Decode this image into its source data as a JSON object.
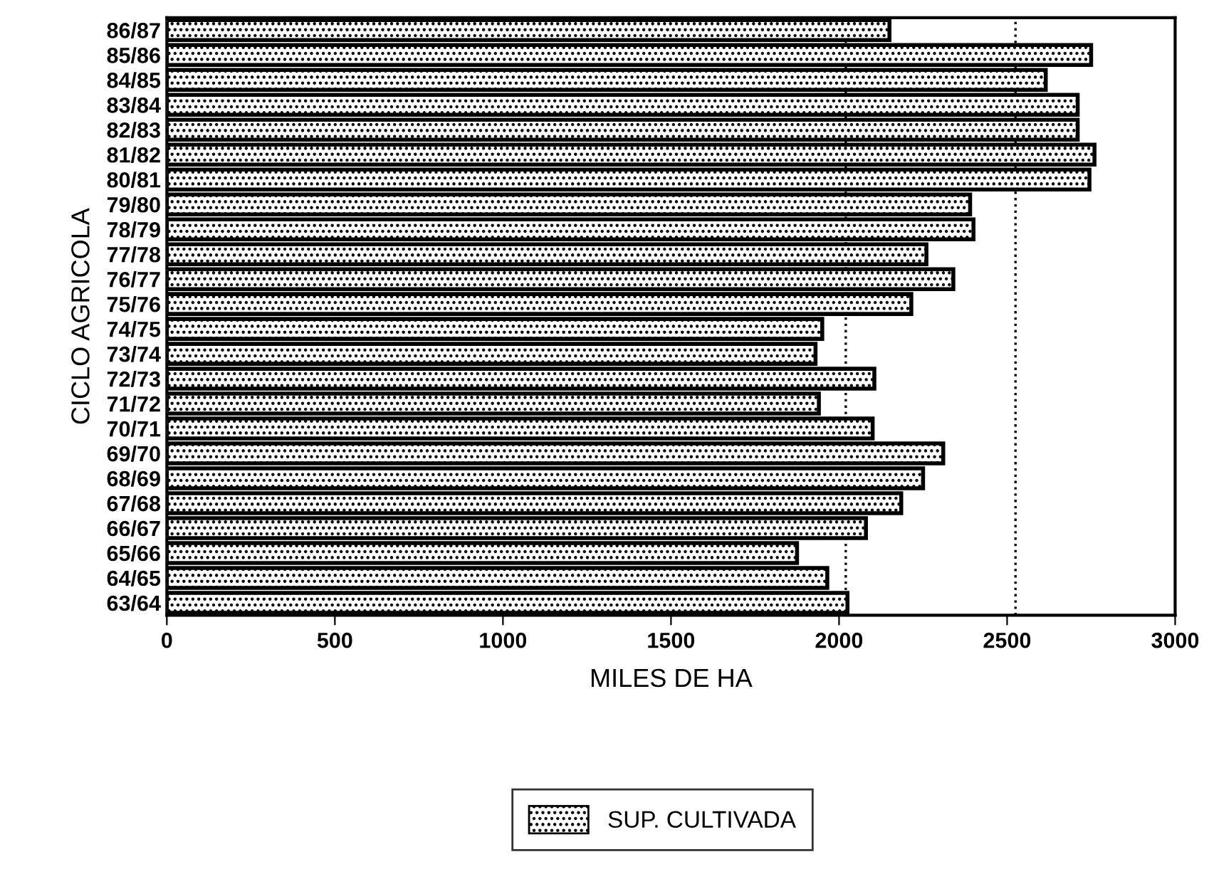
{
  "chart_data": {
    "type": "bar",
    "orientation": "horizontal",
    "xlabel": "MILES DE HA",
    "ylabel": "CICLO AGRICOLA",
    "categories": [
      "86/87",
      "85/86",
      "84/85",
      "83/84",
      "82/83",
      "81/82",
      "80/81",
      "79/80",
      "78/79",
      "77/78",
      "76/77",
      "75/76",
      "74/75",
      "73/74",
      "72/73",
      "71/72",
      "70/71",
      "69/70",
      "68/69",
      "67/68",
      "66/67",
      "65/66",
      "64/65",
      "63/64"
    ],
    "series": [
      {
        "name": "SUP. CULTIVADA",
        "color": "#000000",
        "values": [
          2150,
          2750,
          2615,
          2710,
          2710,
          2760,
          2745,
          2390,
          2400,
          2260,
          2340,
          2215,
          1950,
          1930,
          2105,
          1940,
          2100,
          2310,
          2250,
          2185,
          2080,
          1875,
          1965,
          2025
        ]
      }
    ],
    "xlim": [
      0,
      3000
    ],
    "xticks": [
      0,
      500,
      1000,
      1500,
      2000,
      2500,
      3000
    ],
    "ref_lines": [
      {
        "axis": "x",
        "value": 2020,
        "line_style": "dotted",
        "color": "#000000"
      },
      {
        "axis": "x",
        "value": 2525,
        "line_style": "dotted",
        "color": "#000000"
      }
    ],
    "legend": "bottom",
    "grid": false
  }
}
